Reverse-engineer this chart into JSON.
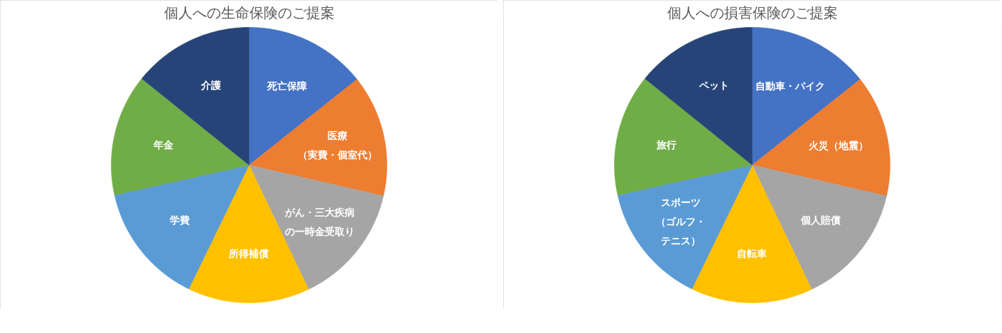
{
  "chart_data": [
    {
      "type": "pie",
      "title": "個人への生命保険のご提案",
      "categories": [
        "死亡保障",
        "医療（実費・個室代）",
        "がん・三大疾病の一時金受取り",
        "所得補償",
        "学費",
        "年金",
        "介護"
      ],
      "values": [
        14.3,
        14.3,
        14.3,
        14.3,
        14.3,
        14.3,
        14.2
      ],
      "colors": [
        "#4472c4",
        "#ed7d31",
        "#a5a5a5",
        "#ffc000",
        "#5b9bd5",
        "#70ad47",
        "#264478"
      ]
    },
    {
      "type": "pie",
      "title": "個人への損害保険のご提案",
      "categories": [
        "自動車・バイク",
        "火災（地震）",
        "個人賠償",
        "自転車",
        "スポーツ（ゴルフ・テニス）",
        "旅行",
        "ペット"
      ],
      "values": [
        14.3,
        14.3,
        14.3,
        14.3,
        14.3,
        14.3,
        14.2
      ],
      "colors": [
        "#4472c4",
        "#ed7d31",
        "#a5a5a5",
        "#ffc000",
        "#5b9bd5",
        "#70ad47",
        "#264478"
      ]
    }
  ]
}
